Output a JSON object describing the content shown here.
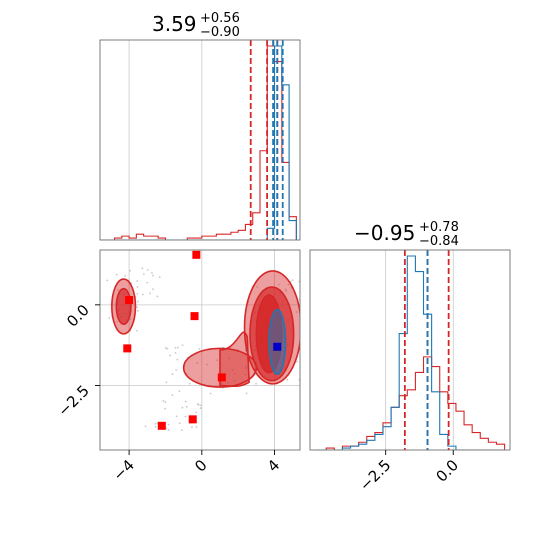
{
  "colors": {
    "chain_a": "#d62728",
    "chain_b": "#1f77b4",
    "marker_a": "#ff0000",
    "marker_b": "#0000cc",
    "grid": "#c8c8c8",
    "frame": "#6e6e6e"
  },
  "chart_data": [
    {
      "type": "histogram",
      "panel": "marginal-parameter-1",
      "title": {
        "value": "3.59",
        "upper": "+0.56",
        "lower": "−0.90"
      },
      "xlim": [
        -5.6,
        5.4
      ],
      "grid": true,
      "bins": [
        -5.6,
        -5.2,
        -4.8,
        -4.4,
        -4.0,
        -3.6,
        -3.2,
        -2.8,
        -2.4,
        -2.0,
        -1.6,
        -1.2,
        -0.8,
        -0.4,
        0.0,
        0.4,
        0.8,
        1.2,
        1.6,
        2.0,
        2.4,
        2.8,
        3.2,
        3.6,
        4.0,
        4.4,
        4.8,
        5.2
      ],
      "series": [
        {
          "color": "#d62728",
          "heights": [
            0,
            0,
            1,
            2,
            1,
            3,
            2,
            2,
            1,
            0,
            0,
            0,
            1,
            1,
            2,
            2,
            3,
            3,
            4,
            5,
            8,
            14,
            46,
            100,
            92,
            40,
            12
          ]
        },
        {
          "color": "#1f77b4",
          "heights": [
            0,
            0,
            0,
            0,
            0,
            0,
            0,
            0,
            0,
            0,
            0,
            0,
            0,
            0,
            0,
            0,
            0,
            0,
            0,
            0,
            0,
            0,
            0,
            6,
            100,
            80,
            10
          ]
        }
      ],
      "quantile_lines": [
        {
          "color": "#d62728",
          "x": [
            2.69,
            3.59,
            4.15
          ]
        },
        {
          "color": "#1f77b4",
          "x": [
            3.92,
            4.15,
            4.45
          ]
        }
      ]
    },
    {
      "type": "histogram",
      "panel": "marginal-parameter-2",
      "title": {
        "value": "−0.95",
        "upper": "+0.78",
        "lower": "−0.84"
      },
      "xlim": [
        -5.3,
        2.1
      ],
      "xticks": [
        -2.5,
        0.0
      ],
      "xticklabels": [
        "−2.5",
        "0.0"
      ],
      "grid": true,
      "bins": [
        -5.0,
        -4.7,
        -4.4,
        -4.1,
        -3.8,
        -3.5,
        -3.2,
        -2.9,
        -2.6,
        -2.3,
        -2.0,
        -1.7,
        -1.4,
        -1.1,
        -0.8,
        -0.5,
        -0.2,
        0.1,
        0.4,
        0.7,
        1.0,
        1.3,
        1.6,
        1.9
      ],
      "series": [
        {
          "color": "#d62728",
          "heights": [
            0,
            1,
            0,
            2,
            2,
            4,
            7,
            9,
            14,
            22,
            28,
            31,
            40,
            48,
            43,
            30,
            24,
            20,
            13,
            9,
            6,
            4,
            3
          ]
        },
        {
          "color": "#1f77b4",
          "heights": [
            0,
            0,
            0,
            1,
            2,
            3,
            5,
            8,
            12,
            22,
            60,
            100,
            92,
            70,
            30,
            8,
            2,
            0,
            0,
            0,
            0,
            0,
            0
          ]
        }
      ],
      "quantile_lines": [
        {
          "color": "#d62728",
          "x": [
            -1.79,
            -0.95,
            -0.17
          ]
        },
        {
          "color": "#1f77b4",
          "x": [
            -0.95
          ]
        }
      ]
    },
    {
      "type": "contour",
      "panel": "joint-parameter-1-vs-2",
      "xlim": [
        -5.6,
        5.4
      ],
      "ylim": [
        -4.5,
        1.7
      ],
      "xticks": [
        -4,
        0,
        4
      ],
      "xticklabels": [
        "−4",
        "0",
        "4"
      ],
      "yticks": [
        0.0,
        -2.5
      ],
      "yticklabels": [
        "0.0",
        "−2.5"
      ],
      "grid": true,
      "contours_red": [
        {
          "level": 1,
          "cx": 3.9,
          "cy": -0.7,
          "rx": 1.55,
          "ry": 1.75
        },
        {
          "level": 2,
          "cx": 3.85,
          "cy": -0.9,
          "rx": 1.2,
          "ry": 1.45
        },
        {
          "level": 3,
          "cx": 3.7,
          "cy": -0.9,
          "rx": 0.7,
          "ry": 1.2
        },
        {
          "level": 1,
          "cx": 1.0,
          "cy": -1.95,
          "rx": 2.0,
          "ry": 0.6
        },
        {
          "level": 1,
          "cx": -4.3,
          "cy": -0.05,
          "rx": 0.65,
          "ry": 0.85
        },
        {
          "level": 2,
          "cx": -4.3,
          "cy": -0.05,
          "rx": 0.4,
          "ry": 0.55
        }
      ],
      "contours_blue": [
        {
          "cx": 4.15,
          "cy": -1.15,
          "rx": 0.45,
          "ry": 1.0
        }
      ],
      "markers_red": [
        {
          "x": -0.3,
          "y": 1.55
        },
        {
          "x": -4.0,
          "y": 0.15
        },
        {
          "x": -0.4,
          "y": -0.35
        },
        {
          "x": -4.1,
          "y": -1.35
        },
        {
          "x": 1.1,
          "y": -2.25
        },
        {
          "x": -0.5,
          "y": -3.55
        },
        {
          "x": -2.2,
          "y": -3.75
        }
      ],
      "markers_blue": [
        {
          "x": 4.15,
          "y": -1.3
        }
      ]
    }
  ]
}
